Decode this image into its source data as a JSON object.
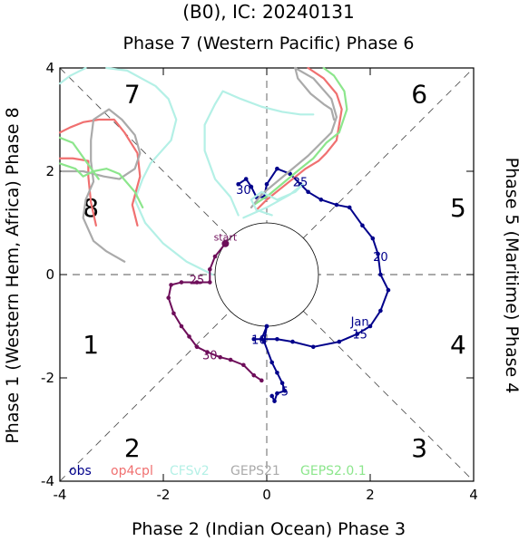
{
  "chart_data": {
    "type": "line",
    "title": "(B0), IC: 20240131",
    "axis_titles": {
      "top": "Phase 7 (Western Pacific) Phase 6",
      "bottom": "Phase 2 (Indian Ocean) Phase 3",
      "left": "Phase 1 (Western Hem, Africa) Phase 8",
      "right": "Phase 5 (Maritime) Phase 4"
    },
    "xlim": [
      -4,
      4
    ],
    "ylim": [
      -4,
      4
    ],
    "x_ticks": [
      "-4",
      "-2",
      "0",
      "2",
      "4"
    ],
    "y_ticks": [
      "-4",
      "-2",
      "0",
      "2",
      "4"
    ],
    "unit_circle_radius": 1,
    "phase_labels": [
      {
        "text": "7",
        "x": -2.6,
        "y": 3.5
      },
      {
        "text": "6",
        "x": 2.95,
        "y": 3.5
      },
      {
        "text": "8",
        "x": -3.4,
        "y": 1.3
      },
      {
        "text": "5",
        "x": 3.7,
        "y": 1.3
      },
      {
        "text": "1",
        "x": -3.4,
        "y": -1.35
      },
      {
        "text": "4",
        "x": 3.7,
        "y": -1.35
      },
      {
        "text": "2",
        "x": -2.6,
        "y": -3.35
      },
      {
        "text": "3",
        "x": 2.95,
        "y": -3.35
      }
    ],
    "legend": [
      {
        "text": "obs",
        "color": "#00008b"
      },
      {
        "text": "op4cpl",
        "color": "#f07070"
      },
      {
        "text": "CFSv2",
        "color": "#b4f0e6"
      },
      {
        "text": "GEPS21",
        "color": "#aaaaaa"
      },
      {
        "text": "GEPS2.0.1",
        "color": "#8ce68c"
      }
    ],
    "series": [
      {
        "name": "obs",
        "color": "#00008b",
        "points": [
          [
            0.0,
            -1.0
          ],
          [
            -0.1,
            -1.25
          ],
          [
            -0.25,
            -1.25
          ],
          [
            0.2,
            -1.25
          ],
          [
            0.5,
            -1.3
          ],
          [
            0.9,
            -1.4
          ],
          [
            1.4,
            -1.3
          ],
          [
            1.75,
            -1.15
          ],
          [
            2.0,
            -1.0
          ],
          [
            2.2,
            -0.7
          ],
          [
            2.35,
            -0.3
          ],
          [
            2.2,
            0.0
          ],
          [
            2.15,
            0.4
          ],
          [
            2.05,
            0.7
          ],
          [
            1.85,
            0.95
          ],
          [
            1.6,
            1.3
          ],
          [
            1.35,
            1.35
          ],
          [
            1.05,
            1.45
          ],
          [
            0.8,
            1.6
          ],
          [
            0.65,
            1.75
          ],
          [
            0.45,
            1.95
          ],
          [
            0.2,
            2.05
          ],
          [
            0.0,
            1.75
          ],
          [
            -0.05,
            1.5
          ],
          [
            -0.2,
            1.5
          ],
          [
            -0.3,
            1.7
          ],
          [
            -0.4,
            1.85
          ],
          [
            -0.55,
            1.75
          ]
        ],
        "obs_b": [
          [
            0.0,
            -1.0
          ],
          [
            0.05,
            -1.5
          ],
          [
            0.2,
            -1.85
          ],
          [
            0.35,
            -2.15
          ],
          [
            0.1,
            -2.35
          ]
        ]
      },
      {
        "name": "obs-early",
        "color": "#00008b",
        "points": [
          [
            0.0,
            -1.0
          ],
          [
            -0.05,
            -1.3
          ],
          [
            0.1,
            -1.7
          ],
          [
            0.2,
            -1.9
          ],
          [
            0.3,
            -2.1
          ],
          [
            0.35,
            -2.25
          ],
          [
            0.2,
            -2.3
          ],
          [
            0.15,
            -2.45
          ],
          [
            0.1,
            -2.35
          ]
        ]
      },
      {
        "name": "op4cpl",
        "color": "#f07070",
        "points": [
          [
            -0.2,
            1.25
          ],
          [
            0.0,
            1.45
          ],
          [
            0.25,
            1.65
          ],
          [
            0.5,
            1.85
          ],
          [
            0.75,
            2.05
          ],
          [
            1.0,
            2.2
          ],
          [
            1.15,
            2.35
          ],
          [
            1.35,
            2.6
          ],
          [
            1.45,
            3.2
          ],
          [
            1.35,
            3.5
          ],
          [
            1.1,
            3.8
          ],
          [
            0.8,
            4.0
          ]
        ]
      },
      {
        "name": "GEPS2.0.1",
        "color": "#8ce68c",
        "points": [
          [
            -0.25,
            1.35
          ],
          [
            0.05,
            1.55
          ],
          [
            0.35,
            1.8
          ],
          [
            0.65,
            2.05
          ],
          [
            0.9,
            2.25
          ],
          [
            1.15,
            2.55
          ],
          [
            1.4,
            2.75
          ],
          [
            1.55,
            3.2
          ],
          [
            1.5,
            3.55
          ],
          [
            1.3,
            3.85
          ],
          [
            1.1,
            4.0
          ]
        ]
      },
      {
        "name": "GEPS21",
        "color": "#aaaaaa",
        "points": [
          [
            -0.3,
            1.3
          ],
          [
            -0.1,
            1.55
          ],
          [
            0.2,
            1.8
          ],
          [
            0.5,
            2.05
          ],
          [
            0.8,
            2.3
          ],
          [
            1.05,
            2.55
          ],
          [
            1.25,
            2.75
          ],
          [
            1.35,
            3.05
          ],
          [
            1.25,
            3.4
          ],
          [
            0.9,
            3.8
          ],
          [
            0.55,
            4.0
          ]
        ]
      },
      {
        "name": "CFSv2",
        "color": "#b4f0e6",
        "points": [
          [
            -0.55,
            1.15
          ],
          [
            -0.7,
            1.5
          ],
          [
            -1.0,
            1.85
          ],
          [
            -1.2,
            2.4
          ],
          [
            -1.2,
            2.9
          ],
          [
            -1.0,
            3.3
          ],
          [
            -0.85,
            3.55
          ],
          [
            -0.5,
            3.4
          ],
          [
            -0.1,
            3.25
          ],
          [
            0.3,
            3.15
          ],
          [
            0.65,
            3.1
          ],
          [
            0.9,
            3.1
          ]
        ]
      },
      {
        "name": "CFSv2-b",
        "color": "#b4f0e6",
        "points": [
          [
            -0.45,
            1.1
          ],
          [
            0.0,
            1.3
          ],
          [
            0.45,
            1.55
          ],
          [
            0.7,
            1.75
          ],
          [
            0.55,
            1.6
          ],
          [
            0.2,
            1.45
          ],
          [
            -0.1,
            1.6
          ],
          [
            -0.3,
            1.45
          ],
          [
            -0.2,
            1.25
          ],
          [
            0.1,
            1.15
          ]
        ]
      },
      {
        "name": "CFSv2-c",
        "color": "#b4f0e6",
        "points": [
          [
            -1.05,
            0.0
          ],
          [
            -1.55,
            0.25
          ],
          [
            -2.0,
            0.6
          ],
          [
            -2.35,
            1.0
          ],
          [
            -2.55,
            1.45
          ],
          [
            -2.4,
            1.85
          ],
          [
            -2.25,
            2.15
          ],
          [
            -1.85,
            2.6
          ],
          [
            -1.75,
            3.0
          ],
          [
            -1.9,
            3.4
          ],
          [
            -2.15,
            3.65
          ],
          [
            -2.7,
            3.95
          ],
          [
            -3.1,
            4.0
          ]
        ]
      },
      {
        "name": "CFSv2-d",
        "color": "#b4f0e6",
        "points": [
          [
            -3.5,
            4.0
          ],
          [
            -3.8,
            3.85
          ],
          [
            -4.0,
            3.7
          ]
        ]
      },
      {
        "name": "op4cpl-b",
        "color": "#f07070",
        "points": [
          [
            -2.5,
            0.95
          ],
          [
            -2.6,
            1.35
          ],
          [
            -2.45,
            1.9
          ],
          [
            -2.5,
            2.35
          ],
          [
            -2.75,
            2.75
          ],
          [
            -2.95,
            3.0
          ],
          [
            -3.25,
            3.0
          ],
          [
            -3.55,
            2.95
          ],
          [
            -3.8,
            2.85
          ],
          [
            -4.0,
            2.75
          ]
        ]
      },
      {
        "name": "op4cpl-c",
        "color": "#f07070",
        "points": [
          [
            -3.3,
            0.95
          ],
          [
            -3.4,
            1.4
          ],
          [
            -3.45,
            1.9
          ],
          [
            -3.45,
            2.2
          ],
          [
            -3.75,
            2.25
          ],
          [
            -4.0,
            2.25
          ]
        ]
      },
      {
        "name": "GEPS21-b",
        "color": "#aaaaaa",
        "points": [
          [
            -2.75,
            0.25
          ],
          [
            -3.1,
            0.45
          ],
          [
            -3.35,
            0.65
          ],
          [
            -3.55,
            1.1
          ],
          [
            -3.5,
            1.45
          ],
          [
            -3.35,
            1.8
          ],
          [
            -3.4,
            2.2
          ],
          [
            -3.4,
            2.6
          ],
          [
            -3.35,
            3.0
          ],
          [
            -3.05,
            3.2
          ],
          [
            -2.8,
            3.0
          ],
          [
            -2.55,
            2.7
          ],
          [
            -2.45,
            2.35
          ],
          [
            -2.55,
            2.05
          ],
          [
            -2.85,
            1.85
          ],
          [
            -3.15,
            1.9
          ],
          [
            -3.55,
            2.0
          ],
          [
            -3.95,
            2.0
          ]
        ]
      },
      {
        "name": "GEPS2.0.1-b",
        "color": "#8ce68c",
        "points": [
          [
            -2.4,
            1.3
          ],
          [
            -2.55,
            1.6
          ],
          [
            -2.85,
            1.95
          ],
          [
            -3.1,
            2.05
          ],
          [
            -3.35,
            2.0
          ],
          [
            -3.55,
            1.9
          ],
          [
            -3.7,
            2.05
          ],
          [
            -4.0,
            2.15
          ]
        ]
      },
      {
        "name": "GEPS2.0.1-c",
        "color": "#8ce68c",
        "points": [
          [
            -3.25,
            1.85
          ],
          [
            -3.5,
            2.2
          ],
          [
            -3.75,
            2.55
          ],
          [
            -4.0,
            2.65
          ]
        ]
      },
      {
        "name": "forecast",
        "color": "#6e0e5a",
        "points": [
          [
            -0.8,
            0.6
          ],
          [
            -1.0,
            0.35
          ],
          [
            -1.1,
            0.1
          ],
          [
            -1.1,
            -0.15
          ],
          [
            -1.35,
            -0.15
          ],
          [
            -1.65,
            -0.15
          ],
          [
            -1.85,
            -0.2
          ],
          [
            -1.9,
            -0.45
          ],
          [
            -1.8,
            -0.75
          ],
          [
            -1.65,
            -1.0
          ],
          [
            -1.5,
            -1.2
          ],
          [
            -1.35,
            -1.4
          ],
          [
            -1.15,
            -1.5
          ],
          [
            -0.9,
            -1.6
          ],
          [
            -0.7,
            -1.65
          ],
          [
            -0.45,
            -1.75
          ],
          [
            -0.25,
            -1.95
          ],
          [
            -0.1,
            -2.05
          ]
        ]
      },
      {
        "name": "GEPS21-c",
        "color": "#aaaaaa",
        "points": [
          [
            0.55,
            4.0
          ],
          [
            0.6,
            3.8
          ],
          [
            0.85,
            3.5
          ],
          [
            1.1,
            3.3
          ],
          [
            1.25,
            3.2
          ],
          [
            1.3,
            3.0
          ]
        ]
      }
    ],
    "point_labels": [
      {
        "text": "start",
        "x": -0.8,
        "y": 0.75,
        "color": "#6e0e5a"
      },
      {
        "text": "25",
        "x": -1.35,
        "y": -0.1,
        "color": "#6e0e5a"
      },
      {
        "text": "30",
        "x": -1.1,
        "y": -1.55,
        "color": "#6e0e5a"
      },
      {
        "text": "30",
        "x": -0.45,
        "y": 1.65,
        "color": "#00008b"
      },
      {
        "text": "25",
        "x": 0.65,
        "y": 1.8,
        "color": "#00008b"
      },
      {
        "text": "20",
        "x": 2.2,
        "y": 0.35,
        "color": "#00008b"
      },
      {
        "text": "Jan",
        "x": 1.8,
        "y": -0.9,
        "color": "#00008b"
      },
      {
        "text": "15",
        "x": 1.8,
        "y": -1.15,
        "color": "#00008b"
      },
      {
        "text": "10",
        "x": -0.15,
        "y": -1.25,
        "color": "#00008b"
      },
      {
        "text": "5",
        "x": 0.35,
        "y": -2.25,
        "color": "#00008b"
      }
    ]
  }
}
